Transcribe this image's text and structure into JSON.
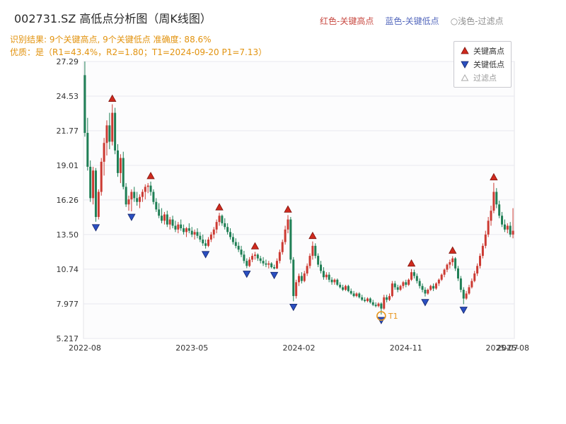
{
  "header": {
    "title": "002731.SZ 高低点分析图（周K线图）",
    "legend_top": [
      {
        "label": "红色-关键高点",
        "color": "#c84a42"
      },
      {
        "label": "蓝色-关键低点",
        "color": "#5468bd"
      },
      {
        "label": "○浅色-过滤点",
        "color": "#8f8f8f"
      }
    ],
    "subtitle1": "识别结果: 9个关键高点, 9个关键低点  准确度: 88.6%",
    "subtitle2": "优质：是（R1=43.4%，R2=1.80；T1=2024-09-20 P1=7.13）"
  },
  "chart_data": {
    "type": "candlestick",
    "title": "002731.SZ 高低点分析图（周K线图）",
    "xlabel": "",
    "ylabel": "",
    "ylim": [
      5.217,
      27.29
    ],
    "grid": "horizontal",
    "y_ticks": [
      {
        "value": 5.217,
        "label": "5.217"
      },
      {
        "value": 7.977,
        "label": "7.977"
      },
      {
        "value": 10.74,
        "label": "10.74"
      },
      {
        "value": 13.5,
        "label": "13.50"
      },
      {
        "value": 16.26,
        "label": "16.26"
      },
      {
        "value": 19.01,
        "label": "19.01"
      },
      {
        "value": 21.77,
        "label": "21.77"
      },
      {
        "value": 24.53,
        "label": "24.53"
      },
      {
        "value": 27.29,
        "label": "27.29"
      }
    ],
    "x_ticks": [
      {
        "pos": 0,
        "label": "2022-08"
      },
      {
        "pos": 39,
        "label": "2023-05"
      },
      {
        "pos": 78,
        "label": "2024-02"
      },
      {
        "pos": 117,
        "label": "2024-11"
      },
      {
        "pos": 152,
        "label": "2025-07"
      },
      {
        "pos": 156,
        "label": "2025-08"
      }
    ],
    "candles": [
      [
        26.2,
        27.29,
        21.3,
        21.6
      ],
      [
        21.6,
        22.8,
        18.6,
        18.9
      ],
      [
        18.9,
        19.4,
        16.1,
        16.4
      ],
      [
        16.4,
        18.9,
        15.9,
        18.6
      ],
      [
        18.6,
        18.8,
        14.52,
        14.9
      ],
      [
        14.9,
        17.1,
        14.7,
        16.9
      ],
      [
        16.9,
        19.6,
        16.6,
        19.3
      ],
      [
        19.3,
        21.2,
        18.2,
        20.8
      ],
      [
        20.8,
        22.6,
        19.8,
        22.2
      ],
      [
        22.2,
        23.2,
        20.3,
        20.9
      ],
      [
        20.9,
        23.88,
        20.6,
        23.2
      ],
      [
        23.2,
        23.6,
        19.9,
        20.2
      ],
      [
        20.2,
        20.7,
        18.1,
        18.4
      ],
      [
        18.4,
        19.9,
        17.6,
        19.6
      ],
      [
        19.6,
        20.1,
        17.1,
        17.3
      ],
      [
        17.3,
        17.6,
        15.7,
        15.9
      ],
      [
        15.9,
        16.6,
        15.4,
        16.3
      ],
      [
        16.3,
        17.1,
        15.35,
        16.9
      ],
      [
        16.9,
        17.3,
        16.1,
        16.4
      ],
      [
        16.4,
        16.9,
        15.8,
        16.1
      ],
      [
        16.1,
        16.7,
        15.6,
        16.5
      ],
      [
        16.5,
        17.1,
        16.1,
        16.9
      ],
      [
        16.9,
        17.5,
        16.3,
        17.3
      ],
      [
        17.3,
        17.6,
        16.8,
        17.4
      ],
      [
        17.4,
        17.72,
        16.6,
        16.9
      ],
      [
        16.9,
        17.1,
        15.9,
        16.1
      ],
      [
        16.1,
        16.4,
        15.3,
        15.5
      ],
      [
        15.5,
        16.0,
        14.8,
        15.0
      ],
      [
        15.0,
        15.6,
        14.4,
        14.6
      ],
      [
        14.6,
        15.3,
        14.3,
        15.1
      ],
      [
        15.1,
        15.4,
        14.1,
        14.3
      ],
      [
        14.3,
        14.9,
        13.9,
        14.7
      ],
      [
        14.7,
        15.0,
        14.0,
        14.2
      ],
      [
        14.2,
        14.6,
        13.7,
        13.9
      ],
      [
        13.9,
        14.5,
        13.6,
        14.3
      ],
      [
        14.3,
        14.7,
        13.8,
        14.0
      ],
      [
        14.0,
        14.3,
        13.5,
        13.7
      ],
      [
        13.7,
        14.1,
        13.3,
        14.0
      ],
      [
        14.0,
        14.4,
        13.6,
        13.8
      ],
      [
        13.8,
        14.1,
        13.3,
        13.5
      ],
      [
        13.5,
        13.9,
        13.1,
        13.7
      ],
      [
        13.7,
        14.0,
        13.2,
        13.4
      ],
      [
        13.4,
        13.7,
        12.9,
        13.1
      ],
      [
        13.1,
        13.5,
        12.6,
        12.8
      ],
      [
        12.8,
        13.1,
        12.38,
        12.6
      ],
      [
        12.6,
        13.3,
        12.5,
        13.1
      ],
      [
        13.1,
        13.7,
        12.9,
        13.5
      ],
      [
        13.5,
        14.1,
        13.2,
        13.9
      ],
      [
        13.9,
        14.7,
        13.6,
        14.5
      ],
      [
        14.5,
        15.23,
        14.2,
        15.0
      ],
      [
        15.0,
        15.1,
        14.2,
        14.4
      ],
      [
        14.4,
        14.8,
        13.9,
        14.1
      ],
      [
        14.1,
        14.4,
        13.5,
        13.7
      ],
      [
        13.7,
        14.0,
        13.1,
        13.3
      ],
      [
        13.3,
        13.6,
        12.7,
        12.9
      ],
      [
        12.9,
        13.2,
        12.4,
        12.6
      ],
      [
        12.6,
        12.9,
        12.1,
        12.3
      ],
      [
        12.3,
        12.6,
        11.7,
        11.9
      ],
      [
        11.9,
        12.2,
        11.2,
        11.4
      ],
      [
        11.4,
        11.6,
        10.82,
        11.0
      ],
      [
        11.0,
        11.7,
        10.9,
        11.5
      ],
      [
        11.5,
        12.0,
        11.3,
        11.8
      ],
      [
        11.8,
        12.12,
        11.5,
        11.9
      ],
      [
        11.9,
        12.0,
        11.4,
        11.6
      ],
      [
        11.6,
        11.8,
        11.2,
        11.4
      ],
      [
        11.4,
        11.7,
        11.0,
        11.2
      ],
      [
        11.2,
        11.5,
        10.9,
        11.1
      ],
      [
        11.1,
        11.4,
        10.8,
        11.2
      ],
      [
        11.2,
        11.3,
        10.8,
        10.9
      ],
      [
        10.9,
        11.1,
        10.72,
        10.8
      ],
      [
        10.8,
        11.6,
        10.75,
        11.4
      ],
      [
        11.4,
        12.3,
        11.2,
        12.1
      ],
      [
        12.1,
        13.1,
        11.9,
        12.9
      ],
      [
        12.9,
        14.2,
        12.7,
        13.9
      ],
      [
        13.9,
        15.05,
        13.6,
        14.7
      ],
      [
        14.7,
        14.9,
        11.2,
        11.5
      ],
      [
        11.5,
        11.7,
        8.18,
        8.6
      ],
      [
        8.6,
        9.9,
        8.4,
        9.7
      ],
      [
        9.7,
        10.4,
        9.4,
        10.2
      ],
      [
        10.2,
        10.5,
        9.6,
        9.8
      ],
      [
        9.8,
        10.6,
        9.7,
        10.4
      ],
      [
        10.4,
        11.2,
        10.2,
        11.0
      ],
      [
        11.0,
        12.0,
        10.8,
        11.8
      ],
      [
        11.8,
        12.95,
        11.5,
        12.6
      ],
      [
        12.6,
        12.8,
        11.6,
        11.8
      ],
      [
        11.8,
        12.0,
        10.9,
        11.1
      ],
      [
        11.1,
        11.4,
        10.4,
        10.6
      ],
      [
        10.6,
        10.9,
        9.9,
        10.1
      ],
      [
        10.1,
        10.5,
        9.9,
        10.3
      ],
      [
        10.3,
        10.5,
        9.7,
        9.9
      ],
      [
        9.9,
        10.1,
        9.5,
        9.7
      ],
      [
        9.7,
        10.0,
        9.5,
        9.9
      ],
      [
        9.9,
        10.0,
        9.4,
        9.5
      ],
      [
        9.5,
        9.7,
        9.2,
        9.3
      ],
      [
        9.3,
        9.5,
        9.0,
        9.1
      ],
      [
        9.1,
        9.5,
        9.0,
        9.4
      ],
      [
        9.4,
        9.5,
        8.9,
        9.0
      ],
      [
        9.0,
        9.2,
        8.7,
        8.8
      ],
      [
        8.8,
        9.0,
        8.5,
        8.6
      ],
      [
        8.6,
        8.9,
        8.5,
        8.8
      ],
      [
        8.8,
        8.9,
        8.4,
        8.5
      ],
      [
        8.5,
        8.7,
        8.2,
        8.3
      ],
      [
        8.3,
        8.5,
        8.1,
        8.2
      ],
      [
        8.2,
        8.5,
        8.1,
        8.4
      ],
      [
        8.4,
        8.5,
        8.0,
        8.1
      ],
      [
        8.1,
        8.3,
        7.8,
        7.9
      ],
      [
        7.9,
        8.1,
        7.7,
        7.8
      ],
      [
        7.8,
        8.1,
        7.7,
        8.0
      ],
      [
        8.0,
        8.1,
        7.13,
        7.6
      ],
      [
        7.6,
        8.7,
        7.5,
        8.5
      ],
      [
        8.5,
        8.7,
        8.1,
        8.3
      ],
      [
        8.3,
        8.8,
        8.2,
        8.6
      ],
      [
        8.6,
        9.8,
        8.5,
        9.6
      ],
      [
        9.6,
        9.8,
        9.1,
        9.3
      ],
      [
        9.3,
        9.5,
        8.9,
        9.1
      ],
      [
        9.1,
        9.5,
        9.0,
        9.4
      ],
      [
        9.4,
        9.8,
        9.2,
        9.7
      ],
      [
        9.7,
        9.9,
        9.3,
        9.5
      ],
      [
        9.5,
        10.0,
        9.4,
        9.9
      ],
      [
        9.9,
        10.75,
        9.8,
        10.5
      ],
      [
        10.5,
        10.7,
        10.0,
        10.2
      ],
      [
        10.2,
        10.4,
        9.6,
        9.8
      ],
      [
        9.8,
        10.0,
        9.2,
        9.4
      ],
      [
        9.4,
        9.6,
        8.9,
        9.1
      ],
      [
        9.1,
        9.3,
        8.56,
        8.8
      ],
      [
        8.8,
        9.2,
        8.7,
        9.1
      ],
      [
        9.1,
        9.5,
        9.0,
        9.4
      ],
      [
        9.4,
        9.6,
        9.0,
        9.2
      ],
      [
        9.2,
        9.7,
        9.1,
        9.6
      ],
      [
        9.6,
        10.0,
        9.4,
        9.9
      ],
      [
        9.9,
        10.4,
        9.8,
        10.3
      ],
      [
        10.3,
        10.8,
        10.1,
        10.7
      ],
      [
        10.7,
        11.2,
        10.5,
        11.1
      ],
      [
        11.1,
        11.5,
        10.8,
        11.3
      ],
      [
        11.3,
        11.78,
        11.0,
        11.6
      ],
      [
        11.6,
        11.7,
        10.6,
        10.8
      ],
      [
        10.8,
        11.0,
        9.8,
        10.0
      ],
      [
        10.0,
        10.2,
        8.9,
        9.1
      ],
      [
        9.1,
        9.3,
        7.95,
        8.4
      ],
      [
        8.4,
        9.0,
        8.3,
        8.8
      ],
      [
        8.8,
        9.5,
        8.7,
        9.3
      ],
      [
        9.3,
        10.0,
        9.2,
        9.8
      ],
      [
        9.8,
        10.6,
        9.7,
        10.4
      ],
      [
        10.4,
        11.2,
        10.2,
        11.0
      ],
      [
        11.0,
        12.0,
        10.8,
        11.8
      ],
      [
        11.8,
        12.8,
        11.6,
        12.6
      ],
      [
        12.6,
        13.8,
        12.4,
        13.5
      ],
      [
        13.5,
        14.9,
        13.3,
        14.6
      ],
      [
        14.6,
        15.8,
        14.2,
        15.4
      ],
      [
        15.4,
        17.62,
        15.2,
        16.9
      ],
      [
        16.9,
        17.2,
        15.6,
        15.9
      ],
      [
        15.9,
        16.2,
        14.8,
        15.0
      ],
      [
        15.0,
        15.3,
        14.1,
        14.3
      ],
      [
        14.3,
        14.7,
        13.7,
        13.9
      ],
      [
        13.9,
        14.4,
        13.6,
        14.2
      ],
      [
        14.2,
        14.5,
        13.3,
        13.5
      ],
      [
        13.5,
        15.6,
        13.2,
        13.8
      ]
    ],
    "key_highs": [
      {
        "week": 10,
        "price": 23.88
      },
      {
        "week": 24,
        "price": 17.72
      },
      {
        "week": 49,
        "price": 15.23
      },
      {
        "week": 62,
        "price": 12.12
      },
      {
        "week": 74,
        "price": 15.05
      },
      {
        "week": 83,
        "price": 12.95
      },
      {
        "week": 119,
        "price": 10.75
      },
      {
        "week": 134,
        "price": 11.78
      },
      {
        "week": 149,
        "price": 17.62
      }
    ],
    "key_lows": [
      {
        "week": 4,
        "price": 14.52
      },
      {
        "week": 17,
        "price": 15.35
      },
      {
        "week": 44,
        "price": 12.38
      },
      {
        "week": 59,
        "price": 10.82
      },
      {
        "week": 69,
        "price": 10.72
      },
      {
        "week": 76,
        "price": 8.18
      },
      {
        "week": 108,
        "price": 7.13
      },
      {
        "week": 124,
        "price": 8.56
      },
      {
        "week": 138,
        "price": 7.95
      }
    ],
    "t1_marker": {
      "week": 108,
      "price": 7.13,
      "label": "T1"
    },
    "legend": {
      "items": [
        {
          "label": "关键高点",
          "marker": "triangle-up",
          "color": "#cf2a1e"
        },
        {
          "label": "关键低点",
          "marker": "triangle-down",
          "color": "#2a4fc0"
        },
        {
          "label": "过滤点",
          "marker": "triangle-open",
          "color": "#aaaaaa"
        }
      ]
    },
    "colors": {
      "up": "#cc3a32",
      "down": "#1f7f55",
      "high_marker": "#cf2a1e",
      "high_marker_edge": "#7e120c",
      "low_marker": "#2a4fc0",
      "low_marker_edge": "#15266c",
      "t1": "#e8961e",
      "grid": "#e9e9ef",
      "plot_bg": "#fcfcfd",
      "plot_border": "#e3e3e8",
      "axis_text": "#333333"
    }
  }
}
